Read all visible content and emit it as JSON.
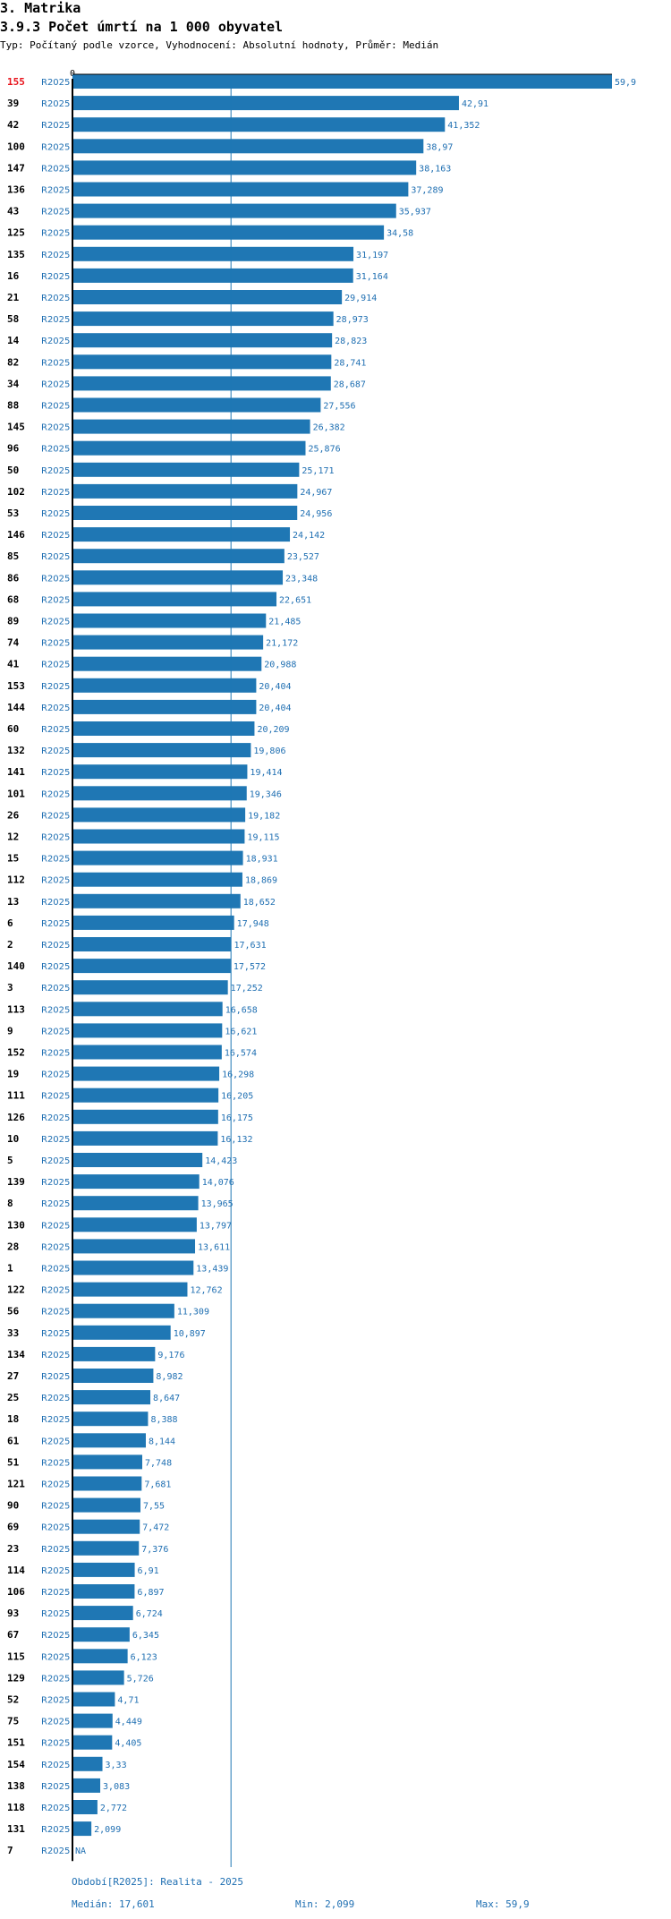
{
  "header": {
    "section": "3. Matrika",
    "title": "3.9.3 Počet úmrtí na 1 000 obyvatel",
    "subtitle": "Typ: Počítaný podle vzorce, Vyhodnocení: Absolutní hodnoty, Průměr: Medián"
  },
  "colors": {
    "bar": "#1f77b4",
    "text_blue": "#1f6fb2",
    "highlight": "#e8141c",
    "axis": "#000000",
    "median_line": "#1f77b4"
  },
  "chart_data": {
    "type": "bar",
    "orientation": "horizontal",
    "axis_min_label": "0",
    "period_label": "R2025",
    "xlim": [
      0,
      59.9
    ],
    "median": 17.601,
    "highlight_category": "155",
    "rows": [
      {
        "id": "155",
        "value": 59.9,
        "label": "59,9"
      },
      {
        "id": "39",
        "value": 42.91,
        "label": "42,91"
      },
      {
        "id": "42",
        "value": 41.352,
        "label": "41,352"
      },
      {
        "id": "100",
        "value": 38.97,
        "label": "38,97"
      },
      {
        "id": "147",
        "value": 38.163,
        "label": "38,163"
      },
      {
        "id": "136",
        "value": 37.289,
        "label": "37,289"
      },
      {
        "id": "43",
        "value": 35.937,
        "label": "35,937"
      },
      {
        "id": "125",
        "value": 34.58,
        "label": "34,58"
      },
      {
        "id": "135",
        "value": 31.197,
        "label": "31,197"
      },
      {
        "id": "16",
        "value": 31.164,
        "label": "31,164"
      },
      {
        "id": "21",
        "value": 29.914,
        "label": "29,914"
      },
      {
        "id": "58",
        "value": 28.973,
        "label": "28,973"
      },
      {
        "id": "14",
        "value": 28.823,
        "label": "28,823"
      },
      {
        "id": "82",
        "value": 28.741,
        "label": "28,741"
      },
      {
        "id": "34",
        "value": 28.687,
        "label": "28,687"
      },
      {
        "id": "88",
        "value": 27.556,
        "label": "27,556"
      },
      {
        "id": "145",
        "value": 26.382,
        "label": "26,382"
      },
      {
        "id": "96",
        "value": 25.876,
        "label": "25,876"
      },
      {
        "id": "50",
        "value": 25.171,
        "label": "25,171"
      },
      {
        "id": "102",
        "value": 24.967,
        "label": "24,967"
      },
      {
        "id": "53",
        "value": 24.956,
        "label": "24,956"
      },
      {
        "id": "146",
        "value": 24.142,
        "label": "24,142"
      },
      {
        "id": "85",
        "value": 23.527,
        "label": "23,527"
      },
      {
        "id": "86",
        "value": 23.348,
        "label": "23,348"
      },
      {
        "id": "68",
        "value": 22.651,
        "label": "22,651"
      },
      {
        "id": "89",
        "value": 21.485,
        "label": "21,485"
      },
      {
        "id": "74",
        "value": 21.172,
        "label": "21,172"
      },
      {
        "id": "41",
        "value": 20.988,
        "label": "20,988"
      },
      {
        "id": "153",
        "value": 20.404,
        "label": "20,404"
      },
      {
        "id": "144",
        "value": 20.404,
        "label": "20,404"
      },
      {
        "id": "60",
        "value": 20.209,
        "label": "20,209"
      },
      {
        "id": "132",
        "value": 19.806,
        "label": "19,806"
      },
      {
        "id": "141",
        "value": 19.414,
        "label": "19,414"
      },
      {
        "id": "101",
        "value": 19.346,
        "label": "19,346"
      },
      {
        "id": "26",
        "value": 19.182,
        "label": "19,182"
      },
      {
        "id": "12",
        "value": 19.115,
        "label": "19,115"
      },
      {
        "id": "15",
        "value": 18.931,
        "label": "18,931"
      },
      {
        "id": "112",
        "value": 18.869,
        "label": "18,869"
      },
      {
        "id": "13",
        "value": 18.652,
        "label": "18,652"
      },
      {
        "id": "6",
        "value": 17.948,
        "label": "17,948"
      },
      {
        "id": "2",
        "value": 17.631,
        "label": "17,631"
      },
      {
        "id": "140",
        "value": 17.572,
        "label": "17,572"
      },
      {
        "id": "3",
        "value": 17.252,
        "label": "17,252"
      },
      {
        "id": "113",
        "value": 16.658,
        "label": "16,658"
      },
      {
        "id": "9",
        "value": 16.621,
        "label": "16,621"
      },
      {
        "id": "152",
        "value": 16.574,
        "label": "16,574"
      },
      {
        "id": "19",
        "value": 16.298,
        "label": "16,298"
      },
      {
        "id": "111",
        "value": 16.205,
        "label": "16,205"
      },
      {
        "id": "126",
        "value": 16.175,
        "label": "16,175"
      },
      {
        "id": "10",
        "value": 16.132,
        "label": "16,132"
      },
      {
        "id": "5",
        "value": 14.423,
        "label": "14,423"
      },
      {
        "id": "139",
        "value": 14.076,
        "label": "14,076"
      },
      {
        "id": "8",
        "value": 13.965,
        "label": "13,965"
      },
      {
        "id": "130",
        "value": 13.797,
        "label": "13,797"
      },
      {
        "id": "28",
        "value": 13.611,
        "label": "13,611"
      },
      {
        "id": "1",
        "value": 13.439,
        "label": "13,439"
      },
      {
        "id": "122",
        "value": 12.762,
        "label": "12,762"
      },
      {
        "id": "56",
        "value": 11.309,
        "label": "11,309"
      },
      {
        "id": "33",
        "value": 10.897,
        "label": "10,897"
      },
      {
        "id": "134",
        "value": 9.176,
        "label": "9,176"
      },
      {
        "id": "27",
        "value": 8.982,
        "label": "8,982"
      },
      {
        "id": "25",
        "value": 8.647,
        "label": "8,647"
      },
      {
        "id": "18",
        "value": 8.388,
        "label": "8,388"
      },
      {
        "id": "61",
        "value": 8.144,
        "label": "8,144"
      },
      {
        "id": "51",
        "value": 7.748,
        "label": "7,748"
      },
      {
        "id": "121",
        "value": 7.681,
        "label": "7,681"
      },
      {
        "id": "90",
        "value": 7.55,
        "label": "7,55"
      },
      {
        "id": "69",
        "value": 7.472,
        "label": "7,472"
      },
      {
        "id": "23",
        "value": 7.376,
        "label": "7,376"
      },
      {
        "id": "114",
        "value": 6.91,
        "label": "6,91"
      },
      {
        "id": "106",
        "value": 6.897,
        "label": "6,897"
      },
      {
        "id": "93",
        "value": 6.724,
        "label": "6,724"
      },
      {
        "id": "67",
        "value": 6.345,
        "label": "6,345"
      },
      {
        "id": "115",
        "value": 6.123,
        "label": "6,123"
      },
      {
        "id": "129",
        "value": 5.726,
        "label": "5,726"
      },
      {
        "id": "52",
        "value": 4.71,
        "label": "4,71"
      },
      {
        "id": "75",
        "value": 4.449,
        "label": "4,449"
      },
      {
        "id": "151",
        "value": 4.405,
        "label": "4,405"
      },
      {
        "id": "154",
        "value": 3.33,
        "label": "3,33"
      },
      {
        "id": "138",
        "value": 3.083,
        "label": "3,083"
      },
      {
        "id": "118",
        "value": 2.772,
        "label": "2,772"
      },
      {
        "id": "131",
        "value": 2.099,
        "label": "2,099"
      },
      {
        "id": "7",
        "value": null,
        "label": "NA"
      }
    ]
  },
  "footer": {
    "period": "Období[R2025]: Realita - 2025",
    "median": "Medián: 17,601",
    "min": "Min: 2,099",
    "max": "Max: 59,9"
  }
}
